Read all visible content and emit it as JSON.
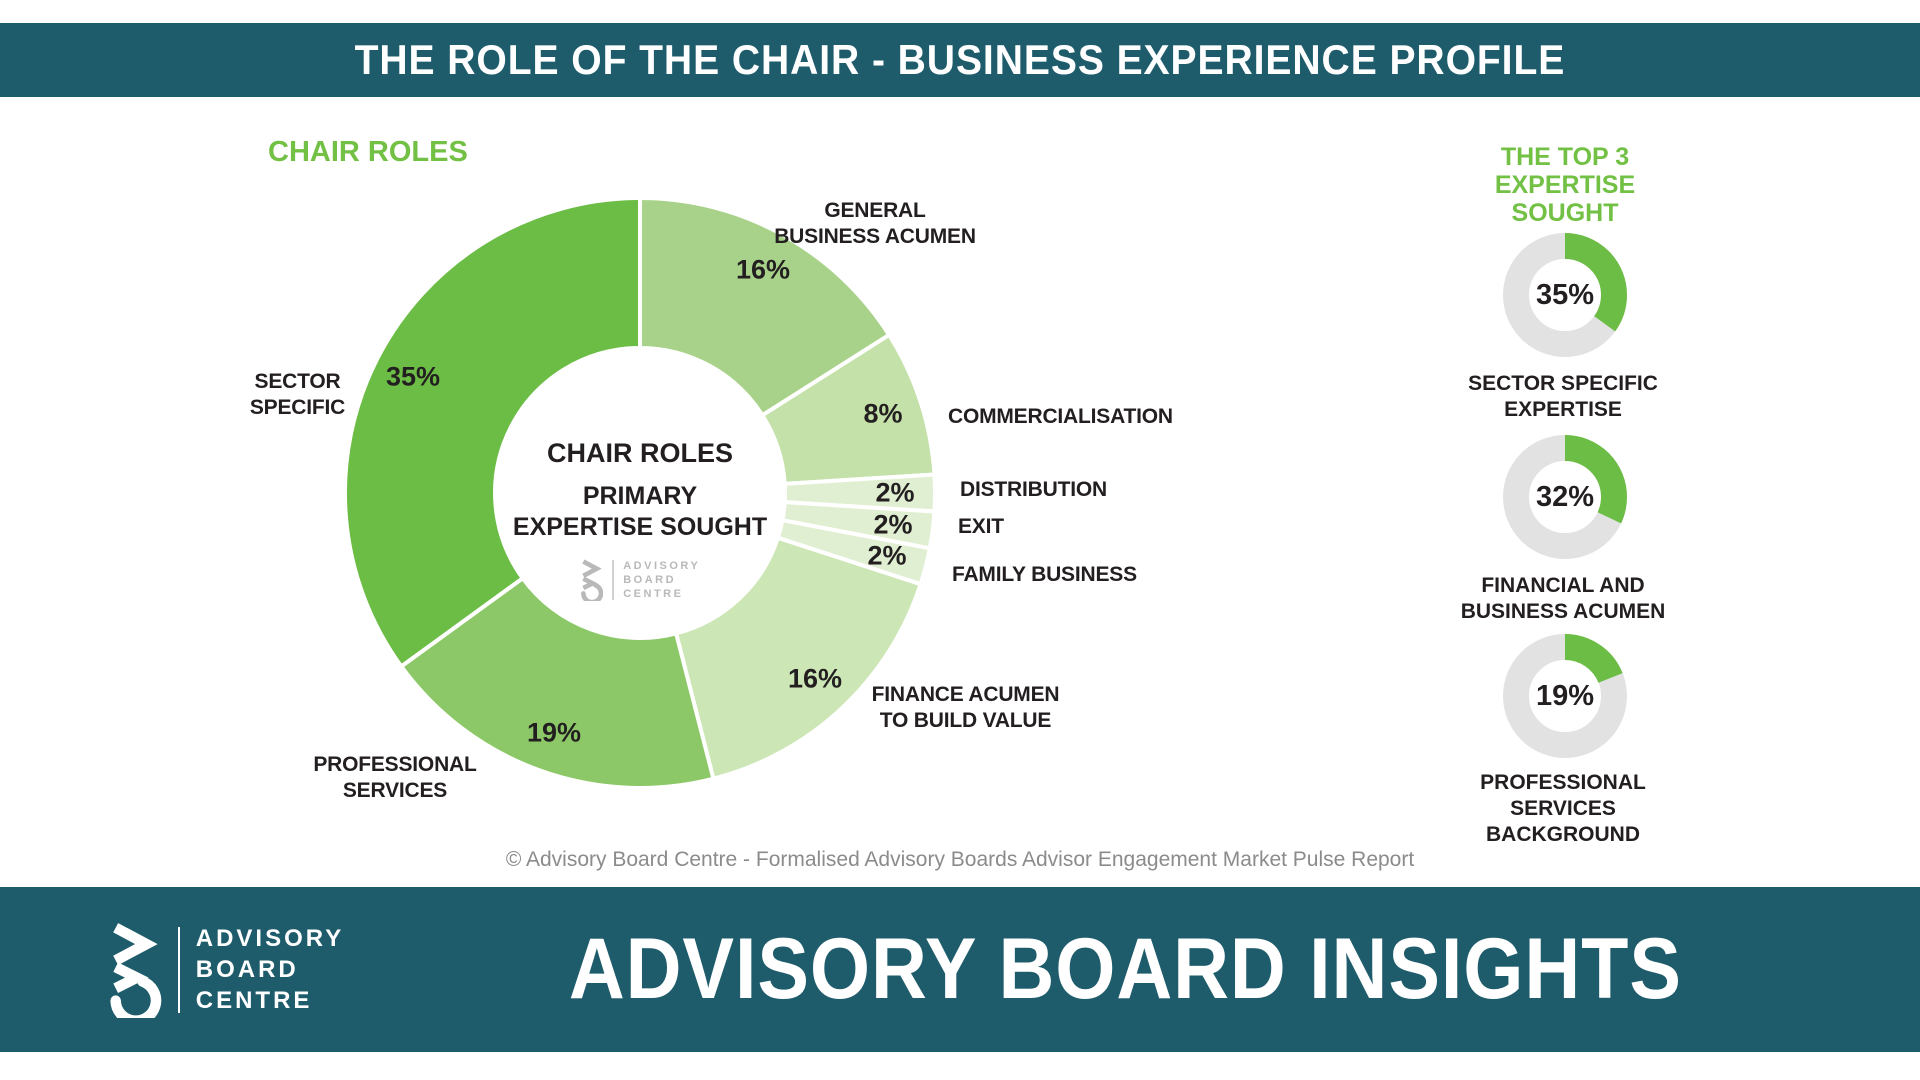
{
  "banner": {
    "title": "THE ROLE OF THE CHAIR - BUSINESS EXPERIENCE PROFILE"
  },
  "section_headings": {
    "left": "CHAIR ROLES",
    "right": "THE TOP 3 EXPERTISE SOUGHT"
  },
  "chart_data": [
    {
      "id": "chair-roles-primary-expertise",
      "type": "pie",
      "subtype": "donut",
      "title": "CHAIR ROLES",
      "center_label": [
        "CHAIR ROLES",
        "PRIMARY EXPERTISE SOUGHT"
      ],
      "start": "top",
      "direction": "clockwise",
      "unit": "%",
      "segments": [
        {
          "label": "GENERAL BUSINESS ACUMEN",
          "value": 16,
          "color": "#a8d289"
        },
        {
          "label": "COMMERCIALISATION",
          "value": 8,
          "color": "#c3e1a8"
        },
        {
          "label": "DISTRIBUTION",
          "value": 2,
          "color": "#e0efd2"
        },
        {
          "label": "EXIT",
          "value": 2,
          "color": "#e0efd2"
        },
        {
          "label": "FAMILY BUSINESS",
          "value": 2,
          "color": "#e0efd2"
        },
        {
          "label": "FINANCE ACUMEN TO BUILD VALUE",
          "value": 16,
          "color": "#cde6b5"
        },
        {
          "label": "PROFESSIONAL SERVICES",
          "value": 19,
          "color": "#8cc868"
        },
        {
          "label": "SECTOR SPECIFIC",
          "value": 35,
          "color": "#6cbd45"
        }
      ]
    },
    {
      "id": "top3-sector-specific",
      "type": "pie",
      "subtype": "donut-progress",
      "value": 35,
      "percent_label": "35%",
      "label": "SECTOR SPECIFIC EXPERTISE",
      "color": "#6cbd45",
      "track_color": "#e2e2e2"
    },
    {
      "id": "top3-financial-business",
      "type": "pie",
      "subtype": "donut-progress",
      "value": 32,
      "percent_label": "32%",
      "label": "FINANCIAL AND BUSINESS ACUMEN",
      "color": "#6cbd45",
      "track_color": "#e2e2e2"
    },
    {
      "id": "top3-professional-services",
      "type": "pie",
      "subtype": "donut-progress",
      "value": 19,
      "percent_label": "19%",
      "label": "PROFESSIONAL SERVICES BACKGROUND",
      "color": "#6cbd45",
      "track_color": "#e2e2e2"
    }
  ],
  "brand": {
    "lines": [
      "ADVISORY",
      "BOARD",
      "CENTRE"
    ]
  },
  "copyright": {
    "text": "© Advisory Board Centre - Formalised Advisory Boards Advisor Engagement Market Pulse Report"
  },
  "footer": {
    "title": "ADVISORY BOARD INSIGHTS"
  },
  "colors": {
    "teal": "#1e5c6c",
    "green": "#72c044",
    "text_dark": "#231f20",
    "muted_gray": "#8b8b8b",
    "logo_gray": "#b9b9b9",
    "track_gray": "#e2e2e2"
  }
}
